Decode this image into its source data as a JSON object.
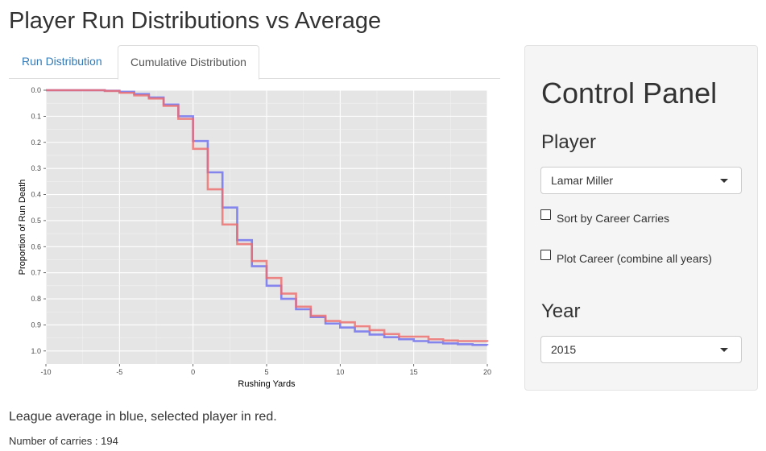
{
  "page": {
    "title": "Player Run Distributions vs Average",
    "caption": "League average in blue, selected player in red.",
    "carries_label": "Number of carries : ",
    "carries_value": "194"
  },
  "tabs": [
    {
      "label": "Run Distribution",
      "active": false
    },
    {
      "label": "Cumulative Distribution",
      "active": true
    }
  ],
  "control_panel": {
    "title": "Control Panel",
    "player_label": "Player",
    "player_value": "Lamar Miller",
    "sort_label": "Sort by Career Carries",
    "sort_checked": false,
    "career_label": "Plot Career (combine all years)",
    "career_checked": false,
    "year_label": "Year",
    "year_value": "2015"
  },
  "colors": {
    "league": "#6b6bef",
    "player": "#ef6b6b",
    "panel_bg": "#e5e5e5",
    "link": "#337ab7"
  },
  "chart_data": {
    "type": "line",
    "step": true,
    "xlabel": "Rushing Yards",
    "ylabel": "Proportion of Run Death",
    "xlim": [
      -10,
      20
    ],
    "ylim": [
      0,
      1.05
    ],
    "y_reversed": true,
    "x_ticks": [
      -10,
      -5,
      0,
      5,
      10,
      15,
      20
    ],
    "y_ticks": [
      "0.0",
      "0.1",
      "0.2",
      "0.3",
      "0.4",
      "0.5",
      "0.6",
      "0.7",
      "0.8",
      "0.9",
      "1.0"
    ],
    "grid": true,
    "series": [
      {
        "name": "League average",
        "color": "blue",
        "x": [
          -10,
          -6,
          -5,
          -4,
          -3,
          -2,
          -1,
          0,
          1,
          2,
          3,
          4,
          5,
          6,
          7,
          8,
          9,
          10,
          11,
          12,
          13,
          14,
          15,
          16,
          17,
          18,
          19,
          20
        ],
        "y": [
          0.0,
          0.002,
          0.006,
          0.015,
          0.028,
          0.055,
          0.1,
          0.195,
          0.315,
          0.45,
          0.575,
          0.675,
          0.75,
          0.8,
          0.84,
          0.87,
          0.895,
          0.91,
          0.925,
          0.937,
          0.947,
          0.955,
          0.962,
          0.967,
          0.971,
          0.974,
          0.977,
          0.978
        ]
      },
      {
        "name": "Selected player",
        "color": "red",
        "x": [
          -10,
          -6,
          -5,
          -4,
          -3,
          -2,
          -1,
          0,
          1,
          2,
          3,
          4,
          5,
          6,
          7,
          8,
          9,
          10,
          11,
          12,
          13,
          14,
          15,
          16,
          17,
          18,
          19,
          20
        ],
        "y": [
          0.0,
          0.003,
          0.01,
          0.02,
          0.032,
          0.06,
          0.11,
          0.225,
          0.38,
          0.515,
          0.59,
          0.655,
          0.72,
          0.78,
          0.83,
          0.865,
          0.885,
          0.89,
          0.905,
          0.92,
          0.935,
          0.945,
          0.945,
          0.955,
          0.96,
          0.962,
          0.962,
          0.965
        ]
      }
    ]
  }
}
